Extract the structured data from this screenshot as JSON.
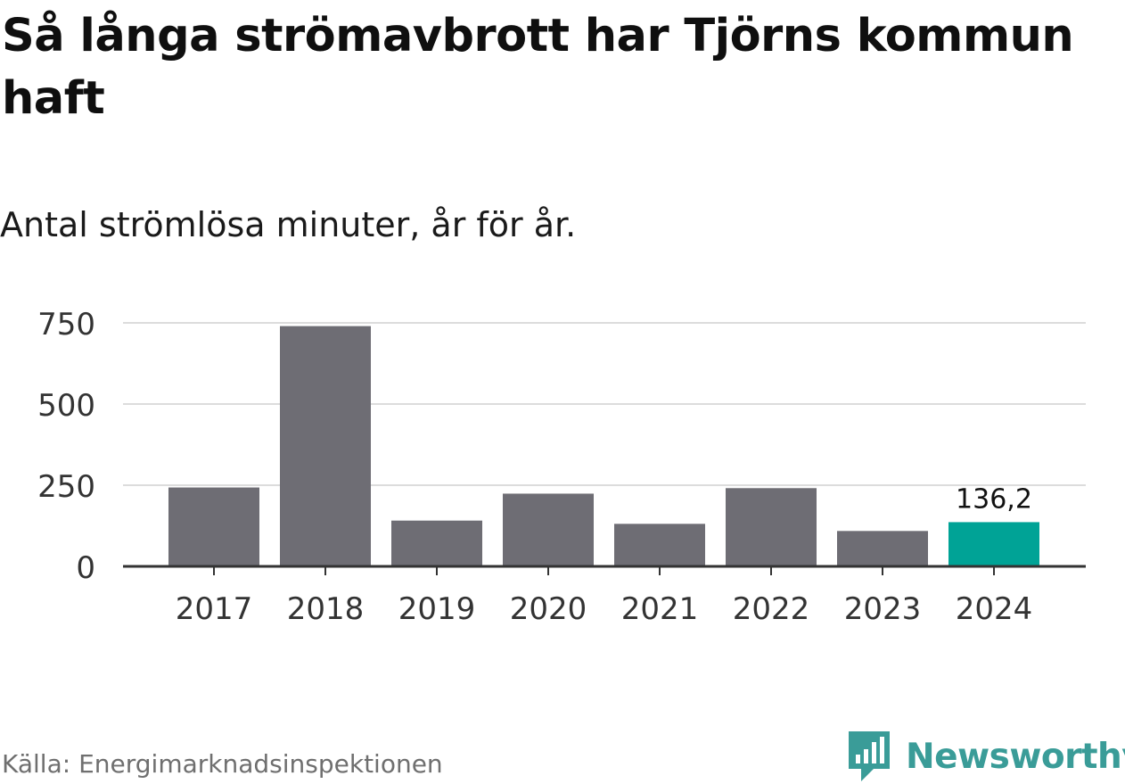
{
  "title": "Så långa strömavbrott har Tjörns kommun haft",
  "subtitle": "Antal strömlösa minuter, år för år.",
  "source": "Källa: Energimarknadsinspektionen",
  "brand": {
    "name": "Newsworthy",
    "icon": "bar-chart-speech-bubble-icon",
    "color": "#3a9c98"
  },
  "colors": {
    "bar": "#6e6d74",
    "highlight": "#00a396",
    "grid": "#dcdcdc",
    "axis": "#333333"
  },
  "chart_data": {
    "type": "bar",
    "categories": [
      "2017",
      "2018",
      "2019",
      "2020",
      "2021",
      "2022",
      "2023",
      "2024"
    ],
    "values": [
      243,
      740,
      141,
      224,
      131,
      241,
      109,
      136.2
    ],
    "highlight_index": 7,
    "data_labels": [
      {
        "index": 7,
        "text": "136,2"
      }
    ],
    "yticks": [
      0,
      250,
      500,
      750
    ],
    "ylim": [
      0,
      750
    ],
    "grid": true,
    "title": "Så långa strömavbrott har Tjörns kommun haft",
    "subtitle": "Antal strömlösa minuter, år för år.",
    "xlabel": "",
    "ylabel": ""
  }
}
